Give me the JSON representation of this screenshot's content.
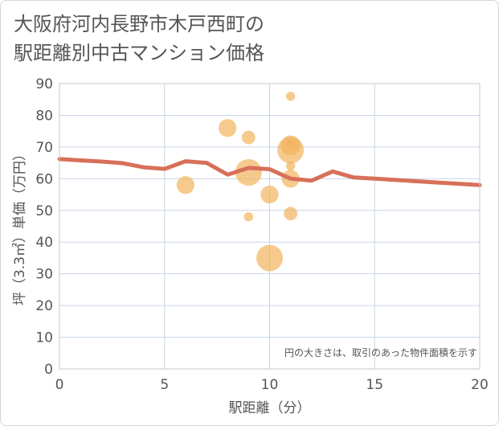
{
  "chart_data": {
    "type": "scatter",
    "title_lines": [
      "大阪府河内長野市木戸西町の",
      "駅距離別中古マンション価格"
    ],
    "xlabel": "駅距離（分）",
    "ylabel": "坪（3.3㎡）単価（万円）",
    "xlim": [
      0,
      20
    ],
    "ylim": [
      0,
      90
    ],
    "x_ticks": [
      0,
      5,
      10,
      15,
      20
    ],
    "y_ticks": [
      0,
      10,
      20,
      30,
      40,
      50,
      60,
      70,
      80,
      90
    ],
    "note": "円の大きさは、取引のあった物件面積を示す",
    "colors": {
      "bubble": "#f2b35c",
      "line": "#d7705a",
      "grid": "#c9d6e6"
    },
    "points": [
      {
        "x": 6,
        "y": 58,
        "size": 3
      },
      {
        "x": 8,
        "y": 76,
        "size": 3
      },
      {
        "x": 9,
        "y": 73,
        "size": 2
      },
      {
        "x": 9,
        "y": 62,
        "size": 5
      },
      {
        "x": 9,
        "y": 48,
        "size": 1
      },
      {
        "x": 10,
        "y": 55,
        "size": 3
      },
      {
        "x": 10,
        "y": 35,
        "size": 5
      },
      {
        "x": 11,
        "y": 86,
        "size": 1
      },
      {
        "x": 11,
        "y": 71,
        "size": 1
      },
      {
        "x": 11,
        "y": 70.5,
        "size": 3.5
      },
      {
        "x": 11,
        "y": 69,
        "size": 5
      },
      {
        "x": 11,
        "y": 64,
        "size": 1
      },
      {
        "x": 11,
        "y": 60,
        "size": 3
      },
      {
        "x": 11,
        "y": 49,
        "size": 2
      }
    ],
    "trend": {
      "x": [
        0,
        1,
        2,
        3,
        4,
        5,
        6,
        7,
        8,
        9,
        10,
        11,
        12,
        13,
        14,
        15,
        16,
        17,
        18,
        19,
        20
      ],
      "y": [
        66.2,
        65.8,
        65.4,
        64.9,
        63.6,
        63.1,
        65.5,
        65,
        61.3,
        63.4,
        63,
        60,
        59.4,
        62.3,
        60.4,
        60,
        59.6,
        59.2,
        58.8,
        58.4,
        58
      ]
    }
  }
}
